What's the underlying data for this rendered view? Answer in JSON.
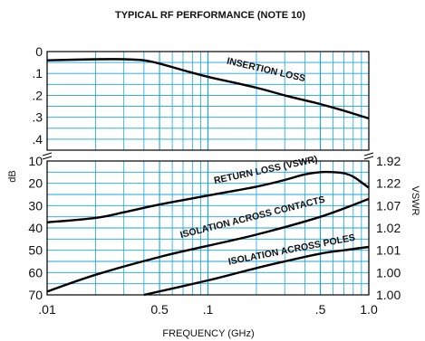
{
  "chart_data": {
    "type": "line",
    "title": "TYPICAL RF PERFORMANCE (NOTE 10)",
    "xlabel": "FREQUENCY (GHz)",
    "ylabel_left": "dB",
    "ylabel_right": "VSWR",
    "x_scale": "log",
    "xlim": [
      0.01,
      1.0
    ],
    "x_tick_labels": [
      ".01",
      "0.5",
      ".1",
      ".5",
      "1.0"
    ],
    "grid": true,
    "grid_color": "#1aa3dc",
    "curve_color": "#000000",
    "upper_panel": {
      "y_tick_labels": [
        "0",
        ".1",
        ".2",
        ".3",
        ".4"
      ],
      "ylim": [
        0,
        0.45
      ],
      "inverted": true
    },
    "lower_panel": {
      "y_tick_labels": [
        "10",
        "20",
        "30",
        "40",
        "50",
        "60",
        "70"
      ],
      "ylim": [
        10,
        70
      ],
      "inverted": true,
      "right_tick_labels": [
        "1.92",
        "1.22",
        "1.07",
        "1.02",
        "1.01",
        "1.00",
        "1.00"
      ]
    },
    "series": [
      {
        "name": "INSERTION LOSS",
        "panel": "upper",
        "x": [
          0.01,
          0.02,
          0.03,
          0.04,
          0.05,
          0.07,
          0.1,
          0.2,
          0.3,
          0.5,
          0.7,
          1.0
        ],
        "y": [
          0.04,
          0.035,
          0.035,
          0.04,
          0.055,
          0.085,
          0.115,
          0.165,
          0.2,
          0.24,
          0.27,
          0.305
        ]
      },
      {
        "name": "RETURN LOSS (VSWR)",
        "panel": "lower",
        "x": [
          0.01,
          0.02,
          0.03,
          0.05,
          0.1,
          0.2,
          0.3,
          0.4,
          0.5,
          0.6,
          0.7,
          0.8,
          1.0
        ],
        "y": [
          37.5,
          35.5,
          33,
          29.5,
          25.5,
          21.5,
          18.5,
          16,
          15,
          15,
          15.5,
          17,
          22
        ]
      },
      {
        "name": "ISOLATION ACROSS CONTACTS",
        "panel": "lower",
        "x": [
          0.01,
          0.02,
          0.05,
          0.1,
          0.2,
          0.5,
          1.0
        ],
        "y": [
          68.5,
          61,
          53,
          48,
          43,
          35,
          27
        ]
      },
      {
        "name": "ISOLATION ACROSS POLES",
        "panel": "lower",
        "x": [
          0.04,
          0.1,
          0.2,
          0.3,
          0.5,
          0.7,
          1.0
        ],
        "y": [
          70.5,
          63.5,
          58,
          55,
          51.5,
          50,
          48.5
        ]
      }
    ]
  }
}
